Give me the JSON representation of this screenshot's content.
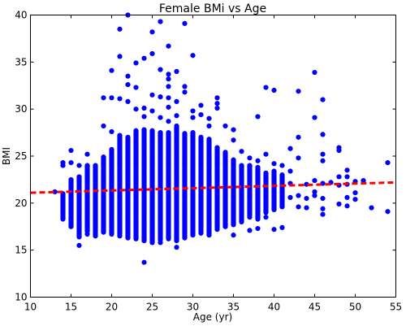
{
  "chart_data": {
    "type": "scatter",
    "title": "Female BMi vs Age",
    "xlabel": "Age (yr)",
    "ylabel": "BMI",
    "xlim": [
      10,
      55
    ],
    "ylim": [
      10,
      40
    ],
    "xticks": [
      10,
      15,
      20,
      25,
      30,
      35,
      40,
      45,
      50,
      55
    ],
    "yticks": [
      10,
      15,
      20,
      25,
      30,
      35,
      40
    ],
    "grid": false,
    "colors": {
      "points": "#0000ff",
      "fit_line": "#ff0000"
    },
    "series": [
      {
        "marker": "circle",
        "dense_columns": [
          {
            "x": 14,
            "ymin": 18.3,
            "ymax": 21.0
          },
          {
            "x": 15,
            "ymin": 17.5,
            "ymax": 22.5
          },
          {
            "x": 16,
            "ymin": 16.4,
            "ymax": 22.8
          },
          {
            "x": 17,
            "ymin": 17.0,
            "ymax": 24.0
          },
          {
            "x": 18,
            "ymin": 16.5,
            "ymax": 24.0
          },
          {
            "x": 19,
            "ymin": 16.9,
            "ymax": 24.9
          },
          {
            "x": 20,
            "ymin": 16.7,
            "ymax": 25.7
          },
          {
            "x": 21,
            "ymin": 16.5,
            "ymax": 27.2
          },
          {
            "x": 22,
            "ymin": 16.3,
            "ymax": 27.0
          },
          {
            "x": 23,
            "ymin": 16.2,
            "ymax": 27.7
          },
          {
            "x": 24,
            "ymin": 16.0,
            "ymax": 27.8
          },
          {
            "x": 25,
            "ymin": 15.8,
            "ymax": 27.7
          },
          {
            "x": 26,
            "ymin": 16.1,
            "ymax": 27.5
          },
          {
            "x": 27,
            "ymin": 16.2,
            "ymax": 27.5
          },
          {
            "x": 28,
            "ymin": 16.0,
            "ymax": 28.2
          },
          {
            "x": 29,
            "ymin": 16.3,
            "ymax": 27.4
          },
          {
            "x": 30,
            "ymin": 16.6,
            "ymax": 27.5
          },
          {
            "x": 31,
            "ymin": 16.8,
            "ymax": 27.0
          },
          {
            "x": 32,
            "ymin": 16.6,
            "ymax": 26.8
          },
          {
            "x": 33,
            "ymin": 17.2,
            "ymax": 25.9
          },
          {
            "x": 34,
            "ymin": 17.5,
            "ymax": 25.4
          },
          {
            "x": 35,
            "ymin": 17.7,
            "ymax": 24.6
          },
          {
            "x": 36,
            "ymin": 18.0,
            "ymax": 24.0
          },
          {
            "x": 37,
            "ymin": 18.5,
            "ymax": 24.0
          },
          {
            "x": 38,
            "ymin": 18.3,
            "ymax": 23.8
          },
          {
            "x": 39,
            "ymin": 19.0,
            "ymax": 23.2
          },
          {
            "x": 40,
            "ymin": 19.3,
            "ymax": 23.4
          },
          {
            "x": 41,
            "ymin": 19.6,
            "ymax": 23.0
          }
        ],
        "points": [
          [
            13,
            21.2
          ],
          [
            14,
            24.0
          ],
          [
            14,
            24.3
          ],
          [
            15,
            25.6
          ],
          [
            15,
            24.3
          ],
          [
            16,
            15.5
          ],
          [
            16,
            24.0
          ],
          [
            17,
            25.2
          ],
          [
            17,
            16.7
          ],
          [
            19,
            28.2
          ],
          [
            19,
            31.2
          ],
          [
            20,
            27.6
          ],
          [
            20,
            34.1
          ],
          [
            20,
            31.2
          ],
          [
            21,
            38.5
          ],
          [
            21,
            35.6
          ],
          [
            21,
            31.1
          ],
          [
            22,
            40.0
          ],
          [
            22,
            33.5
          ],
          [
            22,
            32.6
          ],
          [
            22,
            30.8
          ],
          [
            23,
            34.9
          ],
          [
            23,
            32.3
          ],
          [
            23,
            30.0
          ],
          [
            24,
            35.4
          ],
          [
            24,
            30.1
          ],
          [
            24,
            13.7
          ],
          [
            24,
            29.2
          ],
          [
            25,
            38.2
          ],
          [
            25,
            35.9
          ],
          [
            25,
            31.5
          ],
          [
            25,
            29.8
          ],
          [
            26,
            39.3
          ],
          [
            26,
            34.2
          ],
          [
            26,
            31.3
          ],
          [
            26,
            29.1
          ],
          [
            26,
            15.8
          ],
          [
            27,
            36.7
          ],
          [
            27,
            33.7
          ],
          [
            27,
            33.2
          ],
          [
            27,
            32.4
          ],
          [
            27,
            31.2
          ],
          [
            27,
            30.2
          ],
          [
            27,
            28.7
          ],
          [
            28,
            34.0
          ],
          [
            28,
            30.8
          ],
          [
            28,
            29.3
          ],
          [
            28,
            15.3
          ],
          [
            29,
            39.1
          ],
          [
            29,
            32.4
          ],
          [
            29,
            31.8
          ],
          [
            30,
            35.7
          ],
          [
            30,
            29.8
          ],
          [
            30,
            29.1
          ],
          [
            31,
            30.4
          ],
          [
            31,
            29.4
          ],
          [
            32,
            29.0
          ],
          [
            32,
            28.2
          ],
          [
            33,
            31.2
          ],
          [
            33,
            30.6
          ],
          [
            33,
            30.1
          ],
          [
            34,
            28.2
          ],
          [
            35,
            27.8
          ],
          [
            35,
            26.7
          ],
          [
            35,
            16.6
          ],
          [
            36,
            25.5
          ],
          [
            37,
            24.8
          ],
          [
            37,
            17.1
          ],
          [
            38,
            29.2
          ],
          [
            38,
            24.5
          ],
          [
            38,
            17.3
          ],
          [
            39,
            32.3
          ],
          [
            39,
            25.2
          ],
          [
            39,
            18.5
          ],
          [
            39,
            22.7
          ],
          [
            40,
            32.0
          ],
          [
            40,
            24.2
          ],
          [
            40,
            17.2
          ],
          [
            41,
            24.0
          ],
          [
            41,
            17.4
          ],
          [
            42,
            25.8
          ],
          [
            42,
            23.4
          ],
          [
            42,
            22.1
          ],
          [
            42,
            20.6
          ],
          [
            43,
            31.9
          ],
          [
            43,
            27.0
          ],
          [
            43,
            24.8
          ],
          [
            43,
            20.8
          ],
          [
            43,
            19.6
          ],
          [
            44,
            22.0
          ],
          [
            44,
            20.5
          ],
          [
            44,
            19.5
          ],
          [
            45,
            33.9
          ],
          [
            45,
            29.1
          ],
          [
            45,
            22.4
          ],
          [
            45,
            21.2
          ],
          [
            45,
            20.8
          ],
          [
            46,
            31.0
          ],
          [
            46,
            27.3
          ],
          [
            46,
            25.2
          ],
          [
            46,
            24.5
          ],
          [
            46,
            22.1
          ],
          [
            46,
            20.5
          ],
          [
            46,
            19.4
          ],
          [
            46,
            18.8
          ],
          [
            47,
            22.2
          ],
          [
            48,
            25.9
          ],
          [
            48,
            25.6
          ],
          [
            48,
            22.8
          ],
          [
            48,
            21.9
          ],
          [
            48,
            19.9
          ],
          [
            49,
            23.5
          ],
          [
            49,
            22.8
          ],
          [
            49,
            22.0
          ],
          [
            49,
            20.6
          ],
          [
            49,
            19.7
          ],
          [
            50,
            22.3
          ],
          [
            50,
            21.1
          ],
          [
            50,
            20.4
          ],
          [
            51,
            22.4
          ],
          [
            52,
            19.5
          ],
          [
            54,
            24.3
          ],
          [
            54,
            19.1
          ]
        ]
      }
    ],
    "fit_line": {
      "x": [
        10,
        55
      ],
      "y": [
        21.1,
        22.2
      ],
      "style": "dashed"
    }
  }
}
